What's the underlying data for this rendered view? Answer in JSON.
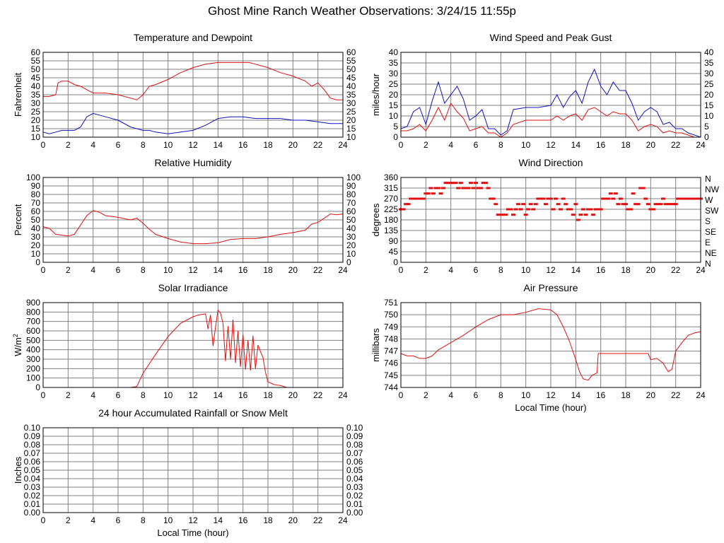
{
  "page": {
    "title": "Ghost Mine Ranch Weather Observations: 3/24/15 11:55p"
  },
  "colors": {
    "red": "#e01010",
    "blue": "#1010c0",
    "grid": "#808080"
  },
  "chart_data": [
    {
      "id": "temp",
      "type": "line",
      "title": "Temperature and Dewpoint",
      "xlabel": "",
      "ylabel": "Fahrenheit",
      "xlim": [
        0,
        24
      ],
      "xticks": [
        0,
        2,
        4,
        6,
        8,
        10,
        12,
        14,
        16,
        18,
        20,
        22,
        24
      ],
      "ylim": [
        10,
        60
      ],
      "yticks": [
        10,
        15,
        20,
        25,
        30,
        35,
        40,
        45,
        50,
        55,
        60
      ],
      "right_ticks": true,
      "series": [
        {
          "color": "red",
          "x": [
            0,
            0.5,
            1,
            1.2,
            1.5,
            2,
            2.5,
            3,
            3.5,
            4,
            5,
            6,
            7,
            7.5,
            8,
            8.5,
            9,
            10,
            11,
            12,
            13,
            14,
            15,
            16,
            16.5,
            17,
            18,
            19,
            20,
            21,
            21.5,
            22,
            22.5,
            23,
            23.5,
            24
          ],
          "y": [
            34,
            34,
            35,
            42,
            43,
            43,
            41,
            40,
            38,
            36,
            36,
            35,
            33,
            32,
            35,
            40,
            41,
            44,
            48,
            51,
            53,
            54,
            54,
            54,
            54,
            53,
            51,
            48,
            46,
            43,
            40,
            42,
            38,
            33,
            32,
            32
          ]
        },
        {
          "color": "blue",
          "x": [
            0,
            0.5,
            1,
            1.5,
            2,
            2.5,
            3,
            3.5,
            4,
            5,
            6,
            7,
            7.5,
            8,
            8.5,
            9,
            10,
            11,
            12,
            13,
            14,
            15,
            16,
            17,
            18,
            19,
            20,
            21,
            22,
            23,
            24
          ],
          "y": [
            13,
            12,
            13,
            14,
            14,
            14,
            16,
            22,
            24,
            22,
            20,
            16,
            15,
            14,
            14,
            13,
            12,
            13,
            14,
            17,
            21,
            22,
            22,
            21,
            21,
            21,
            20,
            20,
            19,
            18,
            18
          ]
        }
      ]
    },
    {
      "id": "wind",
      "type": "line",
      "title": "Wind Speed and Peak Gust",
      "xlabel": "",
      "ylabel": "miles/hour",
      "xlim": [
        0,
        24
      ],
      "xticks": [
        0,
        2,
        4,
        6,
        8,
        10,
        12,
        14,
        16,
        18,
        20,
        22,
        24
      ],
      "ylim": [
        0,
        40
      ],
      "yticks": [
        0,
        5,
        10,
        15,
        20,
        25,
        30,
        35,
        40
      ],
      "right_ticks": true,
      "series": [
        {
          "color": "blue",
          "x": [
            0,
            0.5,
            1,
            1.5,
            2,
            2.5,
            3,
            3.5,
            4,
            4.5,
            5,
            5.5,
            6,
            6.5,
            7,
            7.5,
            8,
            8.5,
            9,
            10,
            11,
            12,
            12.5,
            13,
            13.5,
            14,
            14.5,
            15,
            15.5,
            16,
            16.5,
            17,
            17.5,
            18,
            18.5,
            19,
            19.5,
            20,
            20.5,
            21,
            21.5,
            22,
            22.5,
            23,
            23.5,
            24
          ],
          "y": [
            4,
            5,
            12,
            14,
            6,
            17,
            26,
            16,
            20,
            24,
            18,
            8,
            10,
            13,
            4,
            4,
            1,
            3,
            13,
            14,
            14,
            15,
            20,
            14,
            19,
            22,
            16,
            26,
            32,
            24,
            20,
            26,
            22,
            22,
            16,
            8,
            12,
            14,
            12,
            6,
            7,
            4,
            4,
            2,
            1,
            0
          ]
        },
        {
          "color": "red",
          "x": [
            0,
            0.5,
            1,
            1.5,
            2,
            2.5,
            3,
            3.5,
            4,
            4.5,
            5,
            5.5,
            6,
            6.5,
            7,
            7.5,
            8,
            8.5,
            9,
            10,
            11,
            12,
            12.5,
            13,
            13.5,
            14,
            14.5,
            15,
            15.5,
            16,
            16.5,
            17,
            17.5,
            18,
            18.5,
            19,
            19.5,
            20,
            20.5,
            21,
            21.5,
            22,
            22.5,
            23,
            23.5,
            24
          ],
          "y": [
            3,
            3,
            4,
            6,
            3,
            8,
            14,
            8,
            16,
            12,
            9,
            3,
            4,
            5,
            2,
            2,
            0,
            2,
            6,
            8,
            8,
            8,
            10,
            8,
            10,
            11,
            8,
            13,
            14,
            12,
            10,
            12,
            11,
            11,
            8,
            3,
            5,
            6,
            5,
            2,
            3,
            2,
            2,
            1,
            0,
            0
          ]
        }
      ]
    },
    {
      "id": "rh",
      "type": "line",
      "title": "Relative Humidity",
      "xlabel": "",
      "ylabel": "Percent",
      "xlim": [
        0,
        24
      ],
      "xticks": [
        0,
        2,
        4,
        6,
        8,
        10,
        12,
        14,
        16,
        18,
        20,
        22,
        24
      ],
      "ylim": [
        0,
        100
      ],
      "yticks": [
        0,
        10,
        20,
        30,
        40,
        50,
        60,
        70,
        80,
        90,
        100
      ],
      "right_ticks": true,
      "series": [
        {
          "color": "red",
          "x": [
            0,
            0.5,
            1,
            1.5,
            2,
            2.5,
            3,
            3.5,
            4,
            4.5,
            5,
            6,
            7,
            7.5,
            8,
            8.5,
            9,
            10,
            11,
            12,
            13,
            14,
            15,
            16,
            17,
            18,
            19,
            20,
            21,
            21.5,
            22,
            23,
            23.5,
            24
          ],
          "y": [
            42,
            40,
            33,
            32,
            31,
            33,
            44,
            55,
            61,
            59,
            55,
            53,
            50,
            52,
            46,
            39,
            33,
            28,
            24,
            22,
            22,
            23,
            27,
            28,
            28,
            30,
            33,
            35,
            38,
            45,
            47,
            57,
            56,
            57
          ]
        }
      ]
    },
    {
      "id": "wdir",
      "type": "scatter",
      "title": "Wind Direction",
      "xlabel": "",
      "ylabel": "degrees",
      "xlim": [
        0,
        24
      ],
      "xticks": [
        0,
        2,
        4,
        6,
        8,
        10,
        12,
        14,
        16,
        18,
        20,
        22,
        24
      ],
      "ylim": [
        0,
        360
      ],
      "yticks": [
        0,
        45,
        90,
        135,
        180,
        225,
        270,
        315,
        360
      ],
      "right_labels": [
        "N",
        "NE",
        "E",
        "SE",
        "S",
        "SW",
        "W",
        "NW",
        "N"
      ],
      "series": [
        {
          "color": "red",
          "x": [
            0,
            0.2,
            0.4,
            0.6,
            0.8,
            1,
            1.2,
            1.4,
            1.6,
            1.8,
            2,
            2.2,
            2.4,
            2.6,
            2.8,
            3,
            3.2,
            3.4,
            3.6,
            3.8,
            4,
            4.2,
            4.4,
            4.6,
            4.8,
            5,
            5.2,
            5.4,
            5.6,
            5.8,
            6,
            6.2,
            6.4,
            6.6,
            6.8,
            7,
            7.2,
            7.4,
            7.6,
            7.8,
            8,
            8.2,
            8.4,
            8.6,
            8.8,
            9,
            9.2,
            9.4,
            9.6,
            9.8,
            10,
            10.2,
            10.4,
            10.6,
            10.8,
            11,
            11.2,
            11.4,
            11.6,
            11.8,
            12,
            12.2,
            12.4,
            12.6,
            12.8,
            13,
            13.2,
            13.4,
            13.6,
            13.8,
            14,
            14.2,
            14.4,
            14.6,
            14.8,
            15,
            15.2,
            15.4,
            15.6,
            15.8,
            16,
            16.2,
            16.4,
            16.6,
            16.8,
            17,
            17.2,
            17.4,
            17.6,
            17.8,
            18,
            18.2,
            18.4,
            18.6,
            18.8,
            19,
            19.2,
            19.4,
            19.6,
            19.8,
            20,
            20.2,
            20.4,
            20.6,
            20.8,
            21,
            21.2,
            21.4,
            21.6,
            21.8,
            22,
            22.2,
            22.4,
            22.6,
            22.8,
            23,
            23.2,
            23.4,
            23.6,
            23.8,
            24
          ],
          "y": [
            225,
            225,
            247,
            247,
            270,
            270,
            270,
            270,
            270,
            270,
            292,
            292,
            315,
            292,
            315,
            315,
            292,
            315,
            337,
            337,
            337,
            337,
            337,
            315,
            337,
            315,
            315,
            315,
            337,
            315,
            337,
            315,
            315,
            337,
            337,
            315,
            270,
            270,
            247,
            202,
            202,
            202,
            202,
            225,
            225,
            202,
            225,
            247,
            225,
            247,
            202,
            225,
            247,
            225,
            247,
            270,
            270,
            270,
            247,
            270,
            270,
            225,
            270,
            247,
            225,
            270,
            247,
            225,
            225,
            202,
            247,
            180,
            202,
            225,
            202,
            225,
            225,
            202,
            225,
            225,
            225,
            270,
            270,
            270,
            292,
            270,
            292,
            247,
            270,
            247,
            247,
            225,
            225,
            292,
            247,
            247,
            315,
            315,
            270,
            247,
            225,
            225,
            247,
            247,
            247,
            270,
            247,
            247,
            247,
            247,
            247,
            270,
            270,
            270,
            270,
            270,
            270,
            270,
            270,
            270,
            270
          ]
        }
      ]
    },
    {
      "id": "solar",
      "type": "line",
      "title": "Solar Irradiance",
      "xlabel": "",
      "ylabel": "W/m2",
      "xlim": [
        0,
        24
      ],
      "xticks": [
        0,
        2,
        4,
        6,
        8,
        10,
        12,
        14,
        16,
        18,
        20,
        22,
        24
      ],
      "ylim": [
        0,
        900
      ],
      "yticks": [
        0,
        100,
        200,
        300,
        400,
        500,
        600,
        700,
        800,
        900
      ],
      "right_ticks": false,
      "series": [
        {
          "color": "red",
          "x": [
            0,
            6,
            7,
            7.5,
            8,
            9,
            10,
            11,
            12,
            12.5,
            13,
            13.2,
            13.4,
            13.6,
            13.8,
            14,
            14.2,
            14.4,
            14.6,
            14.8,
            15,
            15.2,
            15.4,
            15.6,
            15.8,
            16,
            16.2,
            16.4,
            16.6,
            16.8,
            17,
            17.2,
            17.4,
            17.6,
            17.8,
            18,
            18.5,
            19,
            19.5,
            20,
            24
          ],
          "y": [
            0,
            0,
            0,
            10,
            150,
            350,
            540,
            680,
            750,
            770,
            780,
            620,
            770,
            440,
            640,
            820,
            790,
            680,
            280,
            650,
            300,
            720,
            260,
            600,
            220,
            560,
            190,
            500,
            180,
            550,
            200,
            450,
            380,
            320,
            160,
            60,
            30,
            20,
            0,
            0,
            0
          ]
        }
      ]
    },
    {
      "id": "pres",
      "type": "line",
      "title": "Air Pressure",
      "xlabel": "Local Time (hour)",
      "ylabel": "millibars",
      "xlim": [
        0,
        24
      ],
      "xticks": [
        0,
        2,
        4,
        6,
        8,
        10,
        12,
        14,
        16,
        18,
        20,
        22,
        24
      ],
      "ylim": [
        744,
        751
      ],
      "yticks": [
        744,
        745,
        746,
        747,
        748,
        749,
        750,
        751
      ],
      "right_ticks": false,
      "series": [
        {
          "color": "red",
          "x": [
            0,
            0.5,
            1,
            1.5,
            2,
            2.5,
            3,
            4,
            5,
            6,
            7,
            8,
            9,
            10,
            11,
            12,
            12.5,
            13,
            13.5,
            14,
            14.3,
            14.6,
            15,
            15.3,
            15.7,
            15.8,
            16,
            17,
            18,
            19,
            19.8,
            20,
            20.5,
            21,
            21.4,
            21.7,
            22,
            22.5,
            23,
            23.5,
            24
          ],
          "y": [
            746.8,
            746.6,
            746.6,
            746.4,
            746.4,
            746.6,
            747.1,
            747.7,
            748.3,
            749.0,
            749.6,
            750.0,
            750.0,
            750.2,
            750.5,
            750.4,
            750.0,
            749.0,
            747.8,
            746.3,
            745.3,
            744.7,
            744.6,
            745.0,
            745.2,
            746.8,
            746.8,
            746.8,
            746.8,
            746.8,
            746.8,
            746.3,
            746.4,
            746.0,
            745.3,
            745.5,
            747.0,
            747.7,
            748.3,
            748.5,
            748.6
          ]
        }
      ]
    },
    {
      "id": "rain",
      "type": "line",
      "title": "24 hour Accumulated Rainfall or Snow Melt",
      "xlabel": "Local Time (hour)",
      "ylabel": "Inches",
      "xlim": [
        0,
        24
      ],
      "xticks": [
        0,
        2,
        4,
        6,
        8,
        10,
        12,
        14,
        16,
        18,
        20,
        22,
        24
      ],
      "ylim": [
        0,
        0.1
      ],
      "yticks": [
        0,
        0.01,
        0.02,
        0.03,
        0.04,
        0.05,
        0.06,
        0.07,
        0.08,
        0.09,
        0.1
      ],
      "ytick_labels": [
        "0.00",
        "0.01",
        "0.02",
        "0.03",
        "0.04",
        "0.05",
        "0.06",
        "0.07",
        "0.08",
        "0.09",
        "0.10"
      ],
      "right_ticks": true,
      "series": [
        {
          "color": "red",
          "x": [
            0,
            24
          ],
          "y": [
            0,
            0
          ]
        }
      ]
    }
  ]
}
